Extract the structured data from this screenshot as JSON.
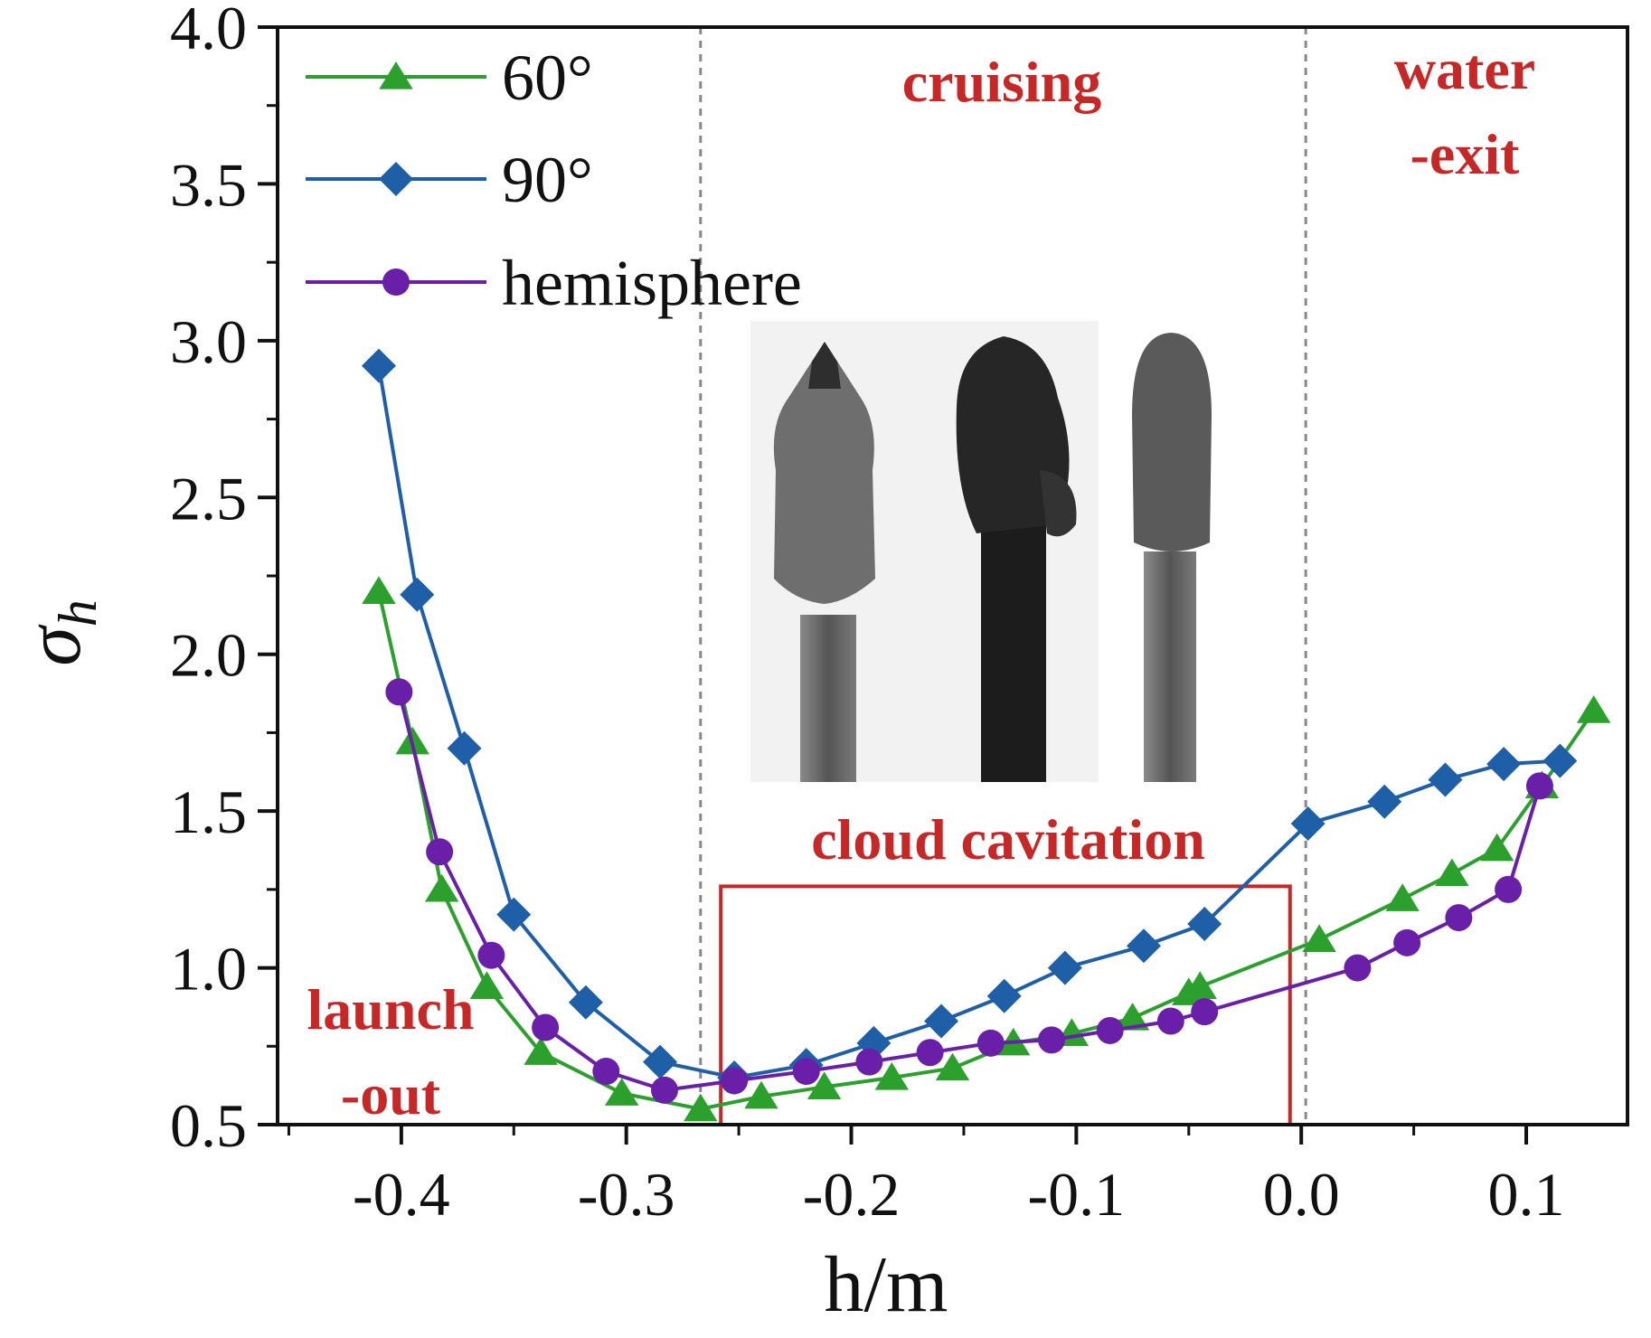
{
  "chart_data": {
    "type": "line",
    "title": "",
    "xlabel": "h/m",
    "ylabel_symbol": "σ",
    "ylabel_subscript": "h",
    "xlim": [
      -0.455,
      0.145
    ],
    "ylim": [
      0.5,
      4.0
    ],
    "x_ticks": [
      -0.4,
      -0.3,
      -0.2,
      -0.1,
      0.0,
      0.1
    ],
    "x_tick_labels": [
      "-0.4",
      "-0.3",
      "-0.2",
      "-0.1",
      "0.0",
      "0.1"
    ],
    "y_ticks": [
      0.5,
      1.0,
      1.5,
      2.0,
      2.5,
      3.0,
      3.5,
      4.0
    ],
    "y_tick_labels": [
      "0.5",
      "1.0",
      "1.5",
      "2.0",
      "2.5",
      "3.0",
      "3.5",
      "4.0"
    ],
    "grid": false,
    "legend_position": "top-left",
    "phase_dividers_x": [
      -0.267,
      0.002
    ],
    "series": [
      {
        "name": "60°",
        "color": "#2ca02c",
        "marker": "triangle",
        "x": [
          -0.41,
          -0.395,
          -0.382,
          -0.362,
          -0.338,
          -0.302,
          -0.267,
          -0.24,
          -0.212,
          -0.182,
          -0.155,
          -0.128,
          -0.102,
          -0.075,
          -0.05,
          -0.045,
          0.008,
          0.045,
          0.067,
          0.087,
          0.107,
          0.13
        ],
        "y": [
          2.2,
          1.72,
          1.25,
          0.94,
          0.73,
          0.6,
          0.55,
          0.59,
          0.62,
          0.65,
          0.68,
          0.76,
          0.79,
          0.84,
          0.92,
          0.94,
          1.09,
          1.22,
          1.3,
          1.38,
          1.58,
          1.82
        ]
      },
      {
        "name": "90°",
        "color": "#1f5fa8",
        "marker": "diamond",
        "x": [
          -0.41,
          -0.393,
          -0.372,
          -0.35,
          -0.318,
          -0.285,
          -0.252,
          -0.22,
          -0.19,
          -0.16,
          -0.132,
          -0.105,
          -0.07,
          -0.043,
          0.003,
          0.037,
          0.064,
          0.09,
          0.115
        ],
        "y": [
          2.92,
          2.19,
          1.7,
          1.17,
          0.89,
          0.7,
          0.65,
          0.69,
          0.76,
          0.83,
          0.91,
          1.0,
          1.07,
          1.14,
          1.46,
          1.53,
          1.6,
          1.65,
          1.66
        ]
      },
      {
        "name": "hemisphere",
        "color": "#6a1fa8",
        "marker": "circle",
        "x": [
          -0.401,
          -0.383,
          -0.36,
          -0.336,
          -0.309,
          -0.283,
          -0.252,
          -0.22,
          -0.192,
          -0.165,
          -0.138,
          -0.111,
          -0.085,
          -0.058,
          -0.043,
          0.025,
          0.047,
          0.07,
          0.092,
          0.106
        ],
        "y": [
          1.88,
          1.37,
          1.04,
          0.81,
          0.67,
          0.61,
          0.64,
          0.67,
          0.7,
          0.73,
          0.76,
          0.77,
          0.8,
          0.83,
          0.86,
          1.0,
          1.08,
          1.16,
          1.25,
          1.58
        ]
      }
    ],
    "annotations": {
      "cruising": "cruising",
      "water_exit_line1": "water",
      "water_exit_line2": "-exit",
      "launch_out_line1": "launch",
      "launch_out_line2": "-out",
      "cloud_cavitation": "cloud cavitation"
    },
    "cloud_cavitation_box": {
      "x": [
        -0.258,
        -0.005
      ],
      "y": [
        0.5,
        1.26
      ]
    },
    "inset_description_labels": []
  }
}
